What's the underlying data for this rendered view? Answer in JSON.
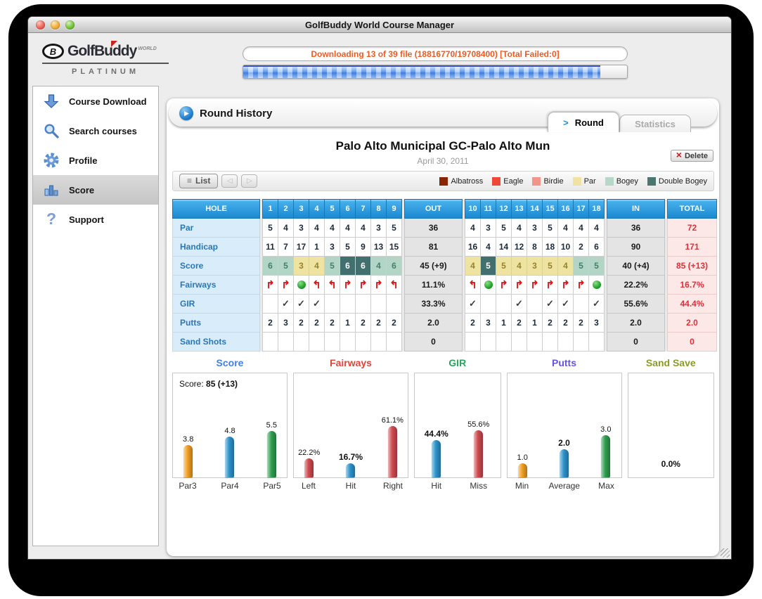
{
  "window": {
    "title": "GolfBuddy World Course Manager"
  },
  "branding": {
    "logo_text": "GolfBuddy",
    "logo_world": "WORLD",
    "logo_platinum": "PLATINUM"
  },
  "downloader": {
    "status_text": "Downloading 13 of 39 file (18816770/19708400) [Total Failed:0]",
    "progress_percent": 93
  },
  "sidebar": {
    "items": [
      {
        "label": "Course Download",
        "icon": "download-arrow-icon",
        "selected": false
      },
      {
        "label": "Search courses",
        "icon": "search-icon",
        "selected": false
      },
      {
        "label": "Profile",
        "icon": "gear-icon",
        "selected": false
      },
      {
        "label": "Score",
        "icon": "bar-chart-icon",
        "selected": true
      },
      {
        "label": "Support",
        "icon": "question-icon",
        "selected": false
      }
    ]
  },
  "main": {
    "section_title": "Round History",
    "tabs": [
      {
        "label": "Round",
        "active": true
      },
      {
        "label": "Statistics",
        "active": false
      }
    ],
    "course_title": "Palo Alto Municipal GC-Palo Alto Mun",
    "round_date": "April 30, 2011",
    "delete_label": "Delete",
    "list_label": "List",
    "legend": [
      {
        "label": "Albatross",
        "color": "#8a2502"
      },
      {
        "label": "Eagle",
        "color": "#f04838"
      },
      {
        "label": "Birdie",
        "color": "#f29588"
      },
      {
        "label": "Par",
        "color": "#eee3a3"
      },
      {
        "label": "Bogey",
        "color": "#b7d7c9"
      },
      {
        "label": "Double Bogey",
        "color": "#4d7672"
      }
    ]
  },
  "scorecard": {
    "columns": {
      "hole": "HOLE",
      "front": [
        "1",
        "2",
        "3",
        "4",
        "5",
        "6",
        "7",
        "8",
        "9"
      ],
      "out": "OUT",
      "back": [
        "10",
        "11",
        "12",
        "13",
        "14",
        "15",
        "16",
        "17",
        "18"
      ],
      "in": "IN",
      "total": "TOTAL"
    },
    "rows": [
      {
        "label": "Par",
        "type": "text",
        "front": [
          "5",
          "4",
          "3",
          "4",
          "4",
          "4",
          "4",
          "3",
          "5"
        ],
        "out": "36",
        "back": [
          "4",
          "3",
          "5",
          "4",
          "3",
          "5",
          "4",
          "4",
          "4"
        ],
        "in": "36",
        "total": "72"
      },
      {
        "label": "Handicap",
        "type": "text",
        "front": [
          "11",
          "7",
          "17",
          "1",
          "3",
          "5",
          "9",
          "13",
          "15"
        ],
        "out": "81",
        "back": [
          "16",
          "4",
          "14",
          "12",
          "8",
          "18",
          "10",
          "2",
          "6"
        ],
        "in": "90",
        "total": "171"
      },
      {
        "label": "Score",
        "type": "score",
        "front": [
          "6",
          "5",
          "3",
          "4",
          "5",
          "6",
          "6",
          "4",
          "6"
        ],
        "front_results": [
          "bogey",
          "bogey",
          "par",
          "par",
          "bogey",
          "double",
          "double",
          "bogey",
          "bogey"
        ],
        "out": "45 (+9)",
        "back": [
          "4",
          "5",
          "5",
          "4",
          "3",
          "5",
          "4",
          "5",
          "5"
        ],
        "back_results": [
          "par",
          "double",
          "par",
          "par",
          "par",
          "par",
          "par",
          "bogey",
          "bogey"
        ],
        "in": "40 (+4)",
        "total": "85 (+13)"
      },
      {
        "label": "Fairways",
        "type": "fairway",
        "front": [
          "right",
          "right",
          "hit",
          "left",
          "left",
          "right",
          "right",
          "right",
          "left"
        ],
        "out": "11.1%",
        "back": [
          "left",
          "hit",
          "right",
          "right",
          "right",
          "right",
          "right",
          "right",
          "hit"
        ],
        "in": "22.2%",
        "total": "16.7%"
      },
      {
        "label": "GIR",
        "type": "check",
        "front": [
          false,
          true,
          true,
          true,
          false,
          false,
          false,
          false,
          false
        ],
        "out": "33.3%",
        "back": [
          true,
          false,
          false,
          true,
          false,
          true,
          true,
          false,
          true
        ],
        "in": "55.6%",
        "total": "44.4%"
      },
      {
        "label": "Putts",
        "type": "text",
        "front": [
          "2",
          "3",
          "2",
          "2",
          "2",
          "1",
          "2",
          "2",
          "2"
        ],
        "out": "2.0",
        "back": [
          "2",
          "3",
          "1",
          "2",
          "1",
          "2",
          "2",
          "2",
          "3"
        ],
        "in": "2.0",
        "total": "2.0"
      },
      {
        "label": "Sand Shots",
        "type": "text",
        "front": [
          "",
          "",
          "",
          "",
          "",
          "",
          "",
          "",
          ""
        ],
        "out": "0",
        "back": [
          "",
          "",
          "",
          "",
          "",
          "",
          "",
          "",
          ""
        ],
        "in": "0",
        "total": "0"
      }
    ]
  },
  "chart_data": [
    {
      "type": "bar",
      "title": "Score",
      "title_color": "#4080e8",
      "categories": [
        "Par3",
        "Par4",
        "Par5"
      ],
      "values": [
        3.8,
        4.8,
        5.5
      ],
      "labels": [
        "3.8",
        "4.8",
        "5.5"
      ],
      "colors": [
        "#f09e22",
        "#2d93cc",
        "#2f9e4f"
      ],
      "bold": [
        false,
        false,
        false
      ],
      "ylim": [
        0,
        10
      ],
      "annotation_prefix": "Score: ",
      "annotation_value": "85 (+13)"
    },
    {
      "type": "bar",
      "title": "Fairways",
      "title_color": "#e04438",
      "categories": [
        "Left",
        "Hit",
        "Right"
      ],
      "values": [
        22.2,
        16.7,
        61.1
      ],
      "labels": [
        "22.2%",
        "16.7%",
        "61.1%"
      ],
      "colors": [
        "#cf4a50",
        "#2d93cc",
        "#cf4a50"
      ],
      "bold": [
        false,
        true,
        false
      ],
      "ylim": [
        0,
        100
      ]
    },
    {
      "type": "bar",
      "title": "GIR",
      "title_color": "#2aa45e",
      "categories": [
        "Hit",
        "Miss"
      ],
      "values": [
        44.4,
        55.6
      ],
      "labels": [
        "44.4%",
        "55.6%"
      ],
      "colors": [
        "#2d93cc",
        "#cf4a50"
      ],
      "bold": [
        true,
        false
      ],
      "ylim": [
        0,
        100
      ]
    },
    {
      "type": "bar",
      "title": "Putts",
      "title_color": "#6456dc",
      "categories": [
        "Min",
        "Average",
        "Max"
      ],
      "values": [
        1.0,
        2.0,
        3.0
      ],
      "labels": [
        "1.0",
        "2.0",
        "3.0"
      ],
      "colors": [
        "#f09e22",
        "#2d93cc",
        "#2f9e4f"
      ],
      "bold": [
        false,
        true,
        false
      ],
      "ylim": [
        0,
        6
      ]
    },
    {
      "type": "bar",
      "title": "Sand Save",
      "title_color": "#8a9c28",
      "categories": [],
      "values": [],
      "labels": [],
      "colors": [],
      "bold": [],
      "ylim": [
        0,
        100
      ],
      "empty_note": "0.0%"
    }
  ]
}
